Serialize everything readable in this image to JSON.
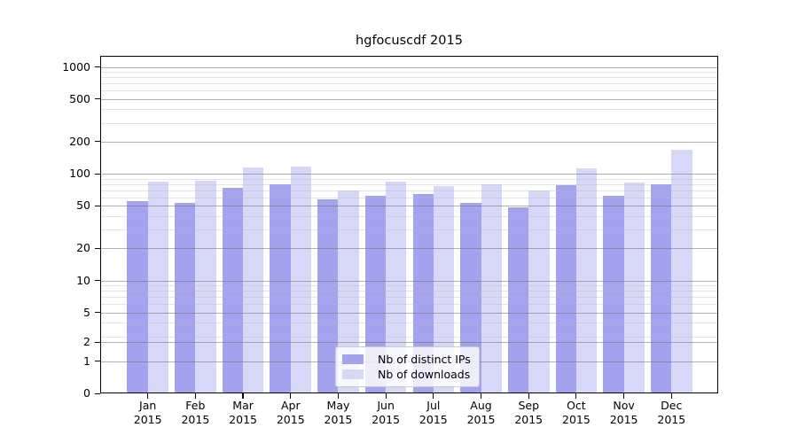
{
  "title": "hgfocuscdf 2015",
  "chart_data": {
    "type": "bar",
    "title": "hgfocuscdf 2015",
    "categories": [
      "Jan 2015",
      "Feb 2015",
      "Mar 2015",
      "Apr 2015",
      "May 2015",
      "Jun 2015",
      "Jul 2015",
      "Aug 2015",
      "Sep 2015",
      "Oct 2015",
      "Nov 2015",
      "Dec 2015"
    ],
    "series": [
      {
        "name": "Nb of distinct IPs",
        "color": "#a3a3ef",
        "values": [
          55,
          53,
          74,
          79,
          58,
          62,
          64,
          53,
          48,
          78,
          62,
          80
        ]
      },
      {
        "name": "Nb of downloads",
        "color": "#d7d7f8",
        "values": [
          85,
          86,
          114,
          116,
          69,
          84,
          77,
          80,
          70,
          113,
          83,
          169
        ]
      }
    ],
    "y_ticks": [
      0,
      1,
      2,
      5,
      10,
      20,
      50,
      100,
      200,
      500,
      1000
    ],
    "y_scale": "symlog",
    "ylim": [
      0,
      1200
    ],
    "xlabel": "",
    "ylabel": "",
    "grid": true,
    "legend_position": "lower center"
  },
  "colors": {
    "bar_distinct_ips": "#a3a3ef",
    "bar_downloads": "#d7d7f8",
    "major_grid": "#b3b3b3",
    "minor_grid": "#e4e4e4",
    "axis": "#000000",
    "legend_border": "#cccccc",
    "background": "#ffffff"
  }
}
